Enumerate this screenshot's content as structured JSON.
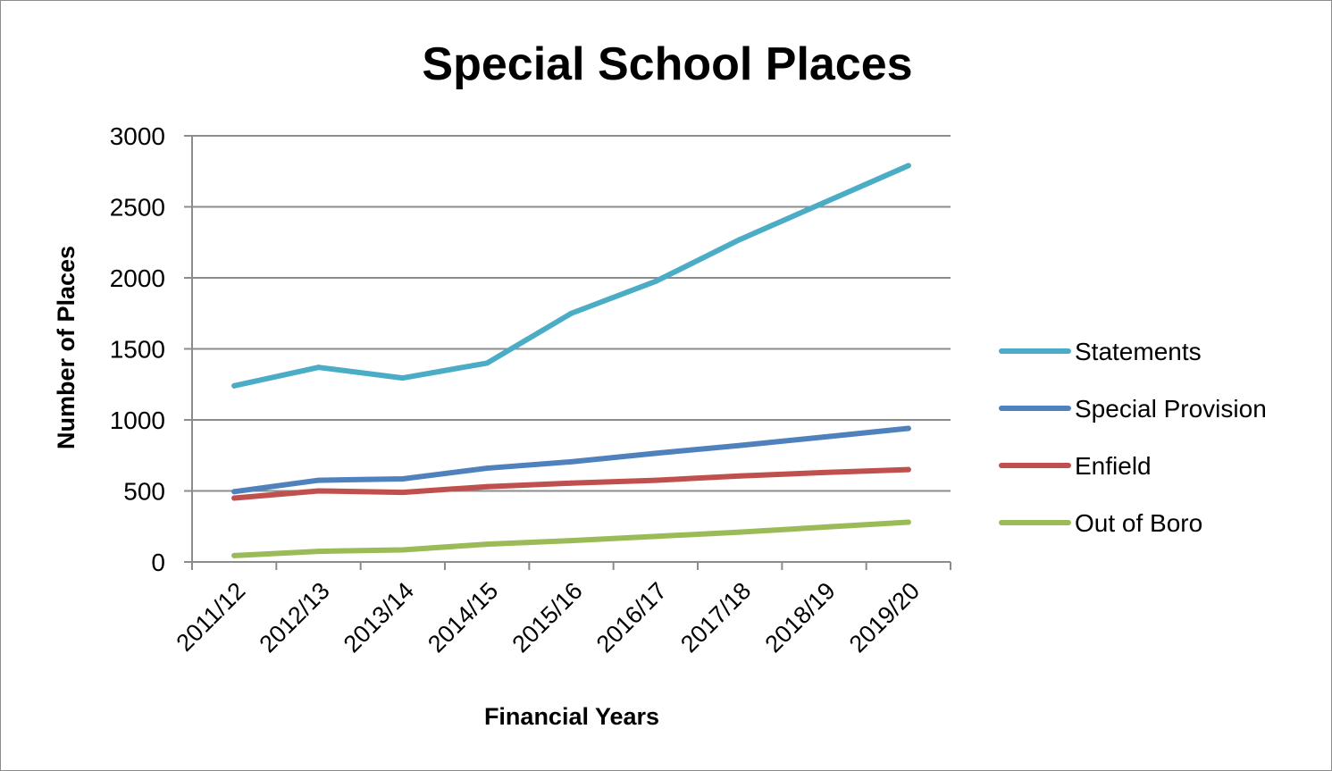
{
  "chart_data": {
    "type": "line",
    "title": "Special School Places",
    "xlabel": "Financial Years",
    "ylabel": "Number of Places",
    "categories": [
      "2011/12",
      "2012/13",
      "2013/14",
      "2014/15",
      "2015/16",
      "2016/17",
      "2017/18",
      "2018/19",
      "2019/20"
    ],
    "ylim": [
      0,
      3000
    ],
    "yticks": [
      0,
      500,
      1000,
      1500,
      2000,
      2500,
      3000
    ],
    "grid": true,
    "legend_position": "right",
    "series": [
      {
        "name": "Statements",
        "color": "#4BACC6",
        "values": [
          1240,
          1370,
          1295,
          1400,
          1750,
          1975,
          2270,
          2530,
          2790
        ]
      },
      {
        "name": "Special Provision",
        "color": "#4F81BD",
        "values": [
          495,
          575,
          585,
          660,
          705,
          765,
          820,
          880,
          940
        ]
      },
      {
        "name": "Enfield",
        "color": "#C0504D",
        "values": [
          450,
          500,
          490,
          530,
          555,
          575,
          605,
          630,
          650
        ]
      },
      {
        "name": "Out of Boro",
        "color": "#9BBB59",
        "values": [
          45,
          75,
          85,
          125,
          150,
          180,
          210,
          245,
          280
        ]
      }
    ]
  }
}
